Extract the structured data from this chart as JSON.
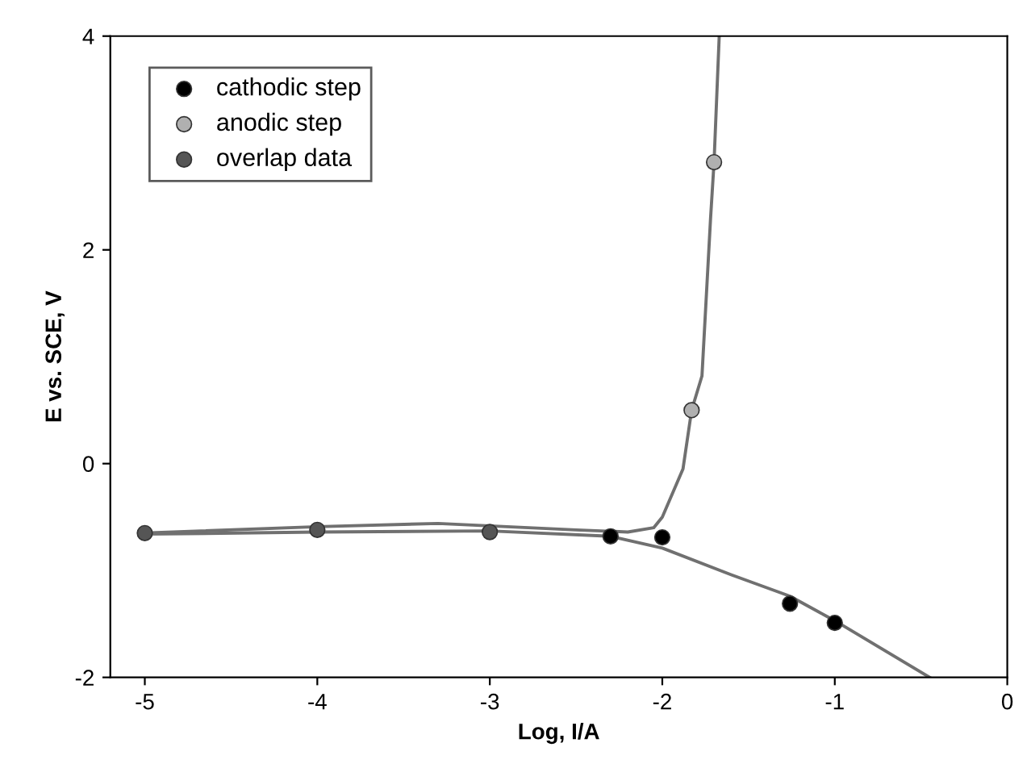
{
  "chart_data": {
    "type": "scatter",
    "xlabel": "Log, I/A",
    "ylabel": "E vs. SCE, V",
    "xlim": [
      -5.2,
      0
    ],
    "xticks": [
      -5,
      -4,
      -3,
      -2,
      -1,
      0
    ],
    "ylim": [
      -2,
      4
    ],
    "yticks": [
      -2,
      0,
      2,
      4
    ],
    "grid": false,
    "legend": "top left",
    "series": [
      {
        "name": "cathodic step",
        "marker": "circle",
        "color": "#000000",
        "x": [
          -2.3,
          -2.0,
          -1.26,
          -1.0
        ],
        "values": [
          -0.68,
          -0.69,
          -1.31,
          -1.49
        ]
      },
      {
        "name": "anodic step",
        "marker": "circle",
        "color": "#b0b0b0",
        "x": [
          -1.83,
          -1.7
        ],
        "values": [
          0.5,
          2.82
        ]
      },
      {
        "name": "overlap data",
        "marker": "circle",
        "color": "#555555",
        "x": [
          -5,
          -4,
          -3
        ],
        "values": [
          -0.65,
          -0.62,
          -0.64
        ]
      },
      {
        "type": "line",
        "marker": "none",
        "line_style": "solid",
        "color": "#707070",
        "x": [
          -5,
          -4,
          -3.3,
          -2.5,
          -2.2,
          -2.05,
          -2.0,
          -1.88,
          -1.83,
          -1.77,
          -1.72,
          -1.7,
          -1.67
        ],
        "values": [
          -0.65,
          -0.59,
          -0.56,
          -0.62,
          -0.64,
          -0.6,
          -0.5,
          -0.05,
          0.5,
          0.82,
          2.3,
          2.82,
          4
        ]
      },
      {
        "type": "line",
        "marker": "none",
        "line_style": "solid",
        "color": "#707070",
        "x": [
          -5,
          -4,
          -3,
          -2.3,
          -2.0,
          -1.6,
          -1.26,
          -1.0,
          -0.45
        ],
        "values": [
          -0.66,
          -0.64,
          -0.63,
          -0.68,
          -0.79,
          -1.04,
          -1.24,
          -1.47,
          -2.0
        ]
      }
    ]
  }
}
